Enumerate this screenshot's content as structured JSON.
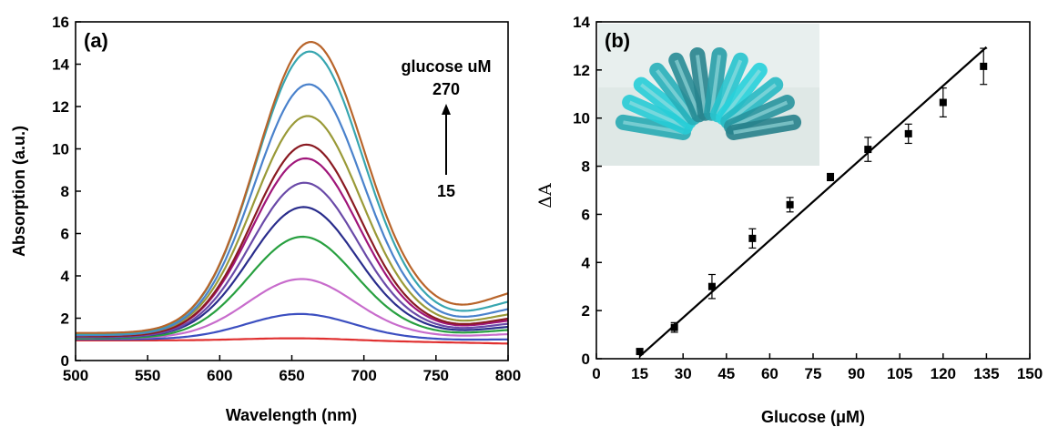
{
  "chart_data": [
    {
      "type": "line",
      "panel_label": "(a)",
      "xlabel": "Wavelength (nm)",
      "ylabel": "Absorption (a.u.)",
      "xlim": [
        500,
        800
      ],
      "ylim": [
        0,
        16
      ],
      "xticks": [
        500,
        550,
        600,
        650,
        700,
        750,
        800
      ],
      "yticks": [
        0,
        2,
        4,
        6,
        8,
        10,
        12,
        14,
        16
      ],
      "grid": false,
      "annotation": {
        "text": "glucose uM",
        "top_value": "270",
        "bottom_value": "15"
      },
      "series": [
        {
          "color": "#e03030",
          "peak": 1.05,
          "base_start": 0.95,
          "base_end": 0.8
        },
        {
          "color": "#3c4fc0",
          "peak": 2.2,
          "base_start": 1.0,
          "base_end": 1.0
        },
        {
          "color": "#c86ccc",
          "peak": 3.85,
          "base_start": 1.05,
          "base_end": 1.25
        },
        {
          "color": "#28a040",
          "peak": 5.85,
          "base_start": 1.05,
          "base_end": 1.45
        },
        {
          "color": "#2a2d8c",
          "peak": 7.25,
          "base_start": 1.1,
          "base_end": 1.6
        },
        {
          "color": "#6a4aa8",
          "peak": 8.4,
          "base_start": 1.1,
          "base_end": 1.75
        },
        {
          "color": "#a0167a",
          "peak": 9.55,
          "base_start": 1.15,
          "base_end": 1.9
        },
        {
          "color": "#8a1a22",
          "peak": 10.2,
          "base_start": 1.15,
          "base_end": 2.0
        },
        {
          "color": "#9a9a38",
          "peak": 11.55,
          "base_start": 1.2,
          "base_end": 2.2
        },
        {
          "color": "#4a82cc",
          "peak": 13.05,
          "base_start": 1.2,
          "base_end": 2.45
        },
        {
          "color": "#38a6b0",
          "peak": 14.6,
          "base_start": 1.25,
          "base_end": 2.8
        },
        {
          "color": "#b8642a",
          "peak": 15.05,
          "base_start": 1.3,
          "base_end": 3.2
        }
      ]
    },
    {
      "type": "scatter",
      "panel_label": "(b)",
      "xlabel": "Glucose (μM)",
      "ylabel": "ΔA",
      "xlim": [
        0,
        150
      ],
      "ylim": [
        0,
        14
      ],
      "xticks": [
        0,
        15,
        30,
        45,
        60,
        75,
        90,
        105,
        120,
        135,
        150
      ],
      "yticks": [
        0,
        2,
        4,
        6,
        8,
        10,
        12,
        14
      ],
      "grid": false,
      "inset_photo": "blue-sample-tubes",
      "points": [
        {
          "x": 15,
          "y": 0.3,
          "err": 0.1
        },
        {
          "x": 27,
          "y": 1.3,
          "err": 0.2
        },
        {
          "x": 40,
          "y": 3.0,
          "err": 0.5
        },
        {
          "x": 54,
          "y": 5.0,
          "err": 0.4
        },
        {
          "x": 67,
          "y": 6.4,
          "err": 0.3
        },
        {
          "x": 81,
          "y": 7.55,
          "err": 0.15
        },
        {
          "x": 94,
          "y": 8.7,
          "err": 0.5
        },
        {
          "x": 108,
          "y": 9.35,
          "err": 0.4
        },
        {
          "x": 120,
          "y": 10.65,
          "err": 0.6
        },
        {
          "x": 134,
          "y": 12.15,
          "err": 0.75
        }
      ],
      "fit_line": {
        "x": [
          15,
          135
        ],
        "y": [
          0.1,
          12.95
        ]
      }
    }
  ]
}
